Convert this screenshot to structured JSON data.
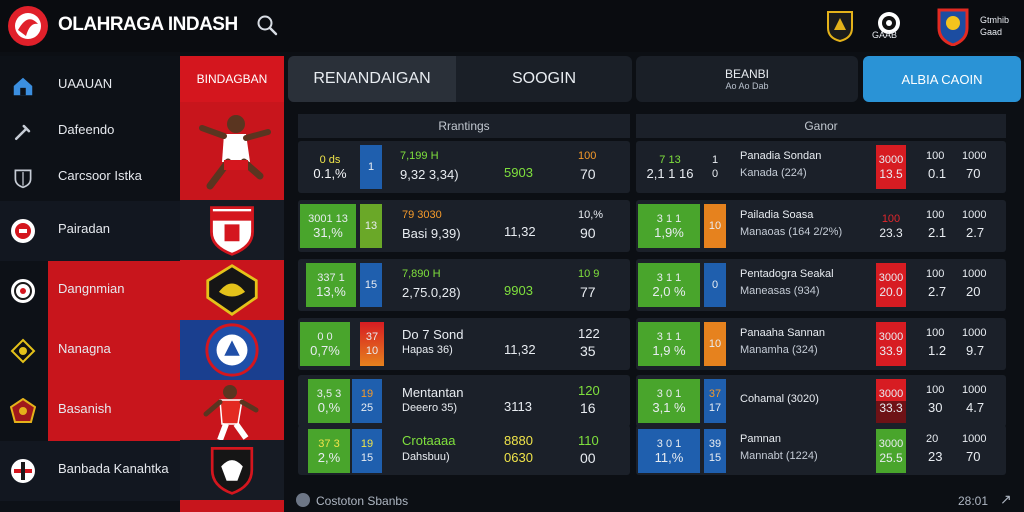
{
  "header": {
    "title": "OLAHRAGA INDASH",
    "badge2_label": "GAAB",
    "user_line1": "Gtmhib",
    "user_line2": "Gaad"
  },
  "sidebar": {
    "items": [
      {
        "label": "UAAUAN",
        "icon": "home-icon"
      },
      {
        "label": "Dafeendo",
        "icon": "tools-icon"
      },
      {
        "label": "Carcsoor Istka",
        "icon": "shield-outline-icon"
      },
      {
        "label": "Pairadan",
        "icon": "club-crest-icon"
      },
      {
        "label": "Dangnmian",
        "icon": "club-crest-icon"
      },
      {
        "label": "Nanagna",
        "icon": "club-crest-icon"
      },
      {
        "label": "Basanish",
        "icon": "club-crest-icon"
      },
      {
        "label": "Banbada Kanahtka",
        "icon": "club-crest-icon"
      }
    ]
  },
  "team_column": {
    "header": "BINDAGBAN"
  },
  "tabs": {
    "tab1": "RENANDAIGAN",
    "tab2": "SOOGIN",
    "tab3_line1": "BEANBI",
    "tab3_line2": "Ao Ao Dab",
    "tab4": "ALBIA CAOIN"
  },
  "left_panel": {
    "heading": "Rrantings",
    "rows": [
      {
        "chip1_a": "0 ds",
        "chip1_b": "0.1,%",
        "chip2": "1",
        "name_a": "7,199 H",
        "name_b": "9,32 3,34)",
        "mid": "5903",
        "score_a": "100",
        "score_b": "70"
      },
      {
        "chip1_a": "3001 13",
        "chip1_b": "31,%",
        "chip2": "13",
        "name_a": "79 3030",
        "name_b": "Basi 9,39)",
        "mid": "11,32",
        "score_a": "10,%",
        "score_b": "90"
      },
      {
        "chip1_a": "337 1",
        "chip1_b": "13,%",
        "chip2": "15",
        "name_a": "7,890 H",
        "name_b": "2,75.0,28)",
        "mid": "9903",
        "score_a": "10 9",
        "score_b": "77"
      },
      {
        "chip1_a": "0 0",
        "chip1_b": "0,7%",
        "chip2": "10",
        "chip2_top": "37",
        "name_a": "Do 7 Sond",
        "name_b": "Hapas 36)",
        "mid": "11,32",
        "score_a": "122",
        "score_b": "35"
      },
      {
        "chip1_a": "3,5 3",
        "chip1_b": "0,%",
        "chip2": "25",
        "chip2_top": "19",
        "name_a": "Mentantan",
        "name_b": "Deeero 35)",
        "mid": "3113",
        "score_a": "120",
        "score_b": "16"
      },
      {
        "chip1_a": "37 3",
        "chip1_b": "2,%",
        "chip2": "15",
        "chip2_top": "19",
        "name_a": "Crotaaaa",
        "name_b": "Dahsbuu)",
        "mid_a": "8880",
        "mid": "0630",
        "score_a": "110",
        "score_b": "00"
      }
    ]
  },
  "right_panel": {
    "heading": "Ganor",
    "rows": [
      {
        "chip1_a": "7 13",
        "chip1_b": "2,1 1 16",
        "pos": "0",
        "pos_top": "1",
        "name_a": "Panadia Sondan",
        "name_b": "Kanada (224)",
        "odd_a": "3000",
        "odd_b": "13.5",
        "c1a": "100",
        "c1b": "0.1",
        "c2a": "1000",
        "c2b": "70"
      },
      {
        "chip1_a": "3 1 1",
        "chip1_b": "1,9%",
        "pos": "10",
        "name_a": "Pailadia Soasa",
        "name_b": "Manaoas (164 2/2%)",
        "odd_a": "100",
        "odd_b": "23.3",
        "c1a": "100",
        "c1b": "2.1",
        "c2a": "1000",
        "c2b": "2.7"
      },
      {
        "chip1_a": "3 1 1",
        "chip1_b": "2,0 %",
        "pos": "0",
        "name_a": "Pentadogra Seakal",
        "name_b": "Maneasas (934)",
        "odd_a": "3000",
        "odd_b": "20.0",
        "c1a": "100",
        "c1b": "2.7",
        "c2a": "1000",
        "c2b": "20"
      },
      {
        "chip1_a": "3 1 1",
        "chip1_b": "1,9 %",
        "pos": "10",
        "name_a": "Panaaha Sannan",
        "name_b": "Manamha (324)",
        "odd_a": "3000",
        "odd_b": "33.9",
        "c1a": "100",
        "c1b": "1.2",
        "c2a": "1000",
        "c2b": "9.7"
      },
      {
        "chip1_a": "3 0 1",
        "chip1_b": "3,1 %",
        "pos": "17",
        "pos_top": "37",
        "name_a": "Cohamal (3020)",
        "name_b": "",
        "odd_a": "3000",
        "odd_b": "33.3",
        "c1a": "100",
        "c1b": "30",
        "c2a": "1000",
        "c2b": "4.7"
      },
      {
        "chip1_a": "3 0 1",
        "chip1_b": "11,%",
        "pos": "15",
        "pos_top": "39",
        "name_a": "Pamnan",
        "name_b": "Mannabt (1224)",
        "odd_a": "3000",
        "odd_b": "25.5",
        "c1a": "20",
        "c1b": "23",
        "c2a": "1000",
        "c2b": "70"
      }
    ]
  },
  "footer": {
    "status": "Costoton Sbanbs",
    "timestamp": "28:01"
  },
  "colors": {
    "accent_red": "#d4161e",
    "accent_blue": "#2a93d6",
    "positive_green": "#49a52c",
    "chip_blue": "#1f5fae",
    "chip_orange": "#e6821e"
  }
}
